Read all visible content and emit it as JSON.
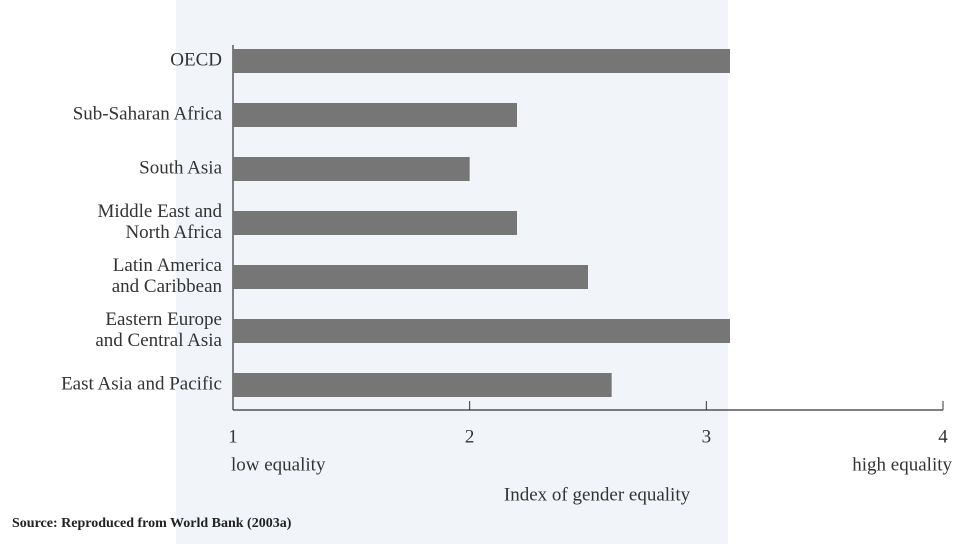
{
  "chart_data": {
    "type": "barh",
    "categories": [
      [
        "OECD"
      ],
      [
        "Sub-Saharan Africa"
      ],
      [
        "South Asia"
      ],
      [
        "Middle East and",
        "North Africa"
      ],
      [
        "Latin America",
        "and Caribbean"
      ],
      [
        "Eastern Europe",
        "and Central Asia"
      ],
      [
        "East Asia and Pacific"
      ]
    ],
    "values": [
      3.1,
      2.2,
      2.0,
      2.2,
      2.5,
      3.1,
      2.6
    ],
    "color": "#767676",
    "xlim": [
      1,
      4
    ],
    "xticks": [
      1,
      2,
      3,
      4
    ],
    "low_label": "low equality",
    "high_label": "high equality",
    "xlabel": "Index of gender equality",
    "source": "Source: Reproduced from World Bank (2003a)"
  }
}
